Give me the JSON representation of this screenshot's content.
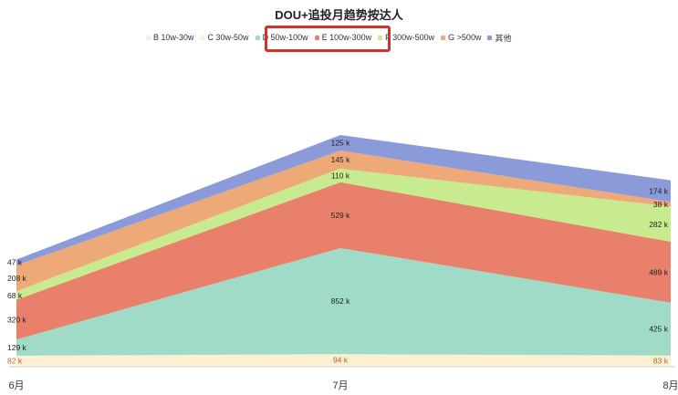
{
  "chart_data": {
    "type": "area",
    "stacked": true,
    "title": "DOU+追投月趋势按达人",
    "categories": [
      "6月",
      "7月",
      "8月"
    ],
    "series": [
      {
        "name": "B 10w-30w",
        "values": [
          0,
          0,
          0
        ],
        "labels": [
          "",
          "",
          ""
        ],
        "color": "#fde9e8"
      },
      {
        "name": "C 30w-50w",
        "values": [
          82,
          94,
          83
        ],
        "labels": [
          "82 k",
          "94 k",
          "83 k"
        ],
        "color": "#fcefd2"
      },
      {
        "name": "D 50w-100w",
        "values": [
          129,
          852,
          425
        ],
        "labels": [
          "129 k",
          "852 k",
          "425 k"
        ],
        "color": "#9fdbc6"
      },
      {
        "name": "E 100w-300w",
        "values": [
          320,
          529,
          489
        ],
        "labels": [
          "320 k",
          "529 k",
          "489 k"
        ],
        "color": "#e8806c"
      },
      {
        "name": "F 300w-500w",
        "values": [
          68,
          110,
          282
        ],
        "labels": [
          "68 k",
          "110 k",
          "282 k"
        ],
        "color": "#c9eb8f"
      },
      {
        "name": "G >500w",
        "values": [
          208,
          145,
          38
        ],
        "labels": [
          "208 k",
          "145 k",
          "38 k"
        ],
        "color": "#eea978"
      },
      {
        "name": "其他",
        "values": [
          47,
          125,
          174
        ],
        "labels": [
          "47 k",
          "125 k",
          "174 k"
        ],
        "color": "#8b9ad8"
      }
    ],
    "legend_position": "top",
    "grid": false,
    "highlighted_legend": [
      "D 50w-100w",
      "E 100w-300w"
    ]
  }
}
